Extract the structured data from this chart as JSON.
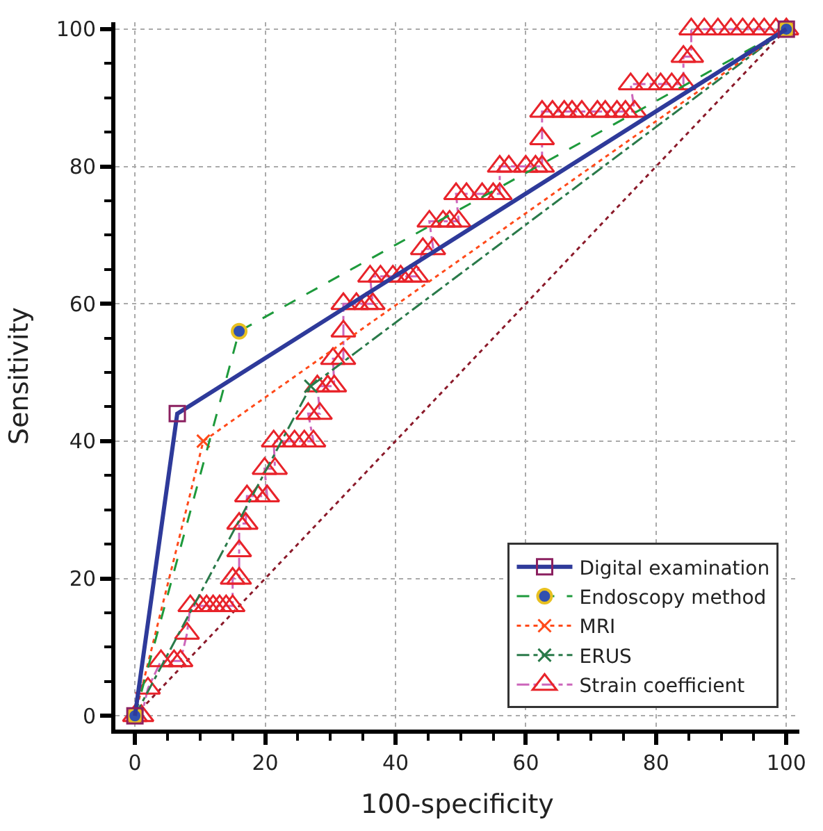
{
  "chart_data": {
    "type": "line",
    "xlabel": "100-specificity",
    "ylabel": "Sensitivity",
    "xlim": [
      -3,
      102
    ],
    "ylim": [
      -2,
      101
    ],
    "xticks": [
      0,
      20,
      40,
      60,
      80,
      100
    ],
    "yticks": [
      0,
      20,
      40,
      60,
      80,
      100
    ],
    "grid": true,
    "legend": "bottom right",
    "series": [
      {
        "name": "Digital examination",
        "color": "#2e3a9a",
        "line_style": "solid",
        "marker": "square",
        "colors": [
          "#8b2060",
          "#8b2060",
          "#8b2060"
        ],
        "x": [
          0,
          6.5,
          100
        ],
        "values": [
          0,
          44,
          100
        ]
      },
      {
        "name": "Endoscopy method",
        "color": "#1e9a3c",
        "line_style": "dashed",
        "marker": "circle",
        "colors": [
          "#3050b0",
          "#3050b0",
          "#3050b0"
        ],
        "x": [
          0,
          16,
          100
        ],
        "values": [
          0,
          56,
          100
        ]
      },
      {
        "name": "MRI",
        "color": "#ff4a1a",
        "line_style": "dotted",
        "marker": "cross",
        "x": [
          0,
          10.5,
          100
        ],
        "values": [
          0,
          40,
          100
        ]
      },
      {
        "name": "ERUS",
        "color": "#2a7a4a",
        "line_style": "dashdot",
        "marker": "cross",
        "x": [
          0,
          27,
          100
        ],
        "values": [
          0,
          48,
          100
        ]
      },
      {
        "name": "Strain coefficient",
        "color": "#cc66bb",
        "line_style": "dashdot",
        "marker": "triangle",
        "colors": [
          "#e8232a",
          "#e8232a",
          "#e8232a",
          "#e8232a",
          "#e8232a",
          "#e8232a",
          "#e8232a",
          "#e8232a",
          "#e8232a",
          "#e8232a",
          "#e8232a",
          "#e8232a",
          "#e8232a",
          "#e8232a",
          "#e8232a",
          "#e8232a",
          "#e8232a",
          "#e8232a",
          "#e8232a",
          "#e8232a",
          "#e8232a",
          "#e8232a",
          "#e8232a",
          "#e8232a",
          "#e8232a",
          "#e8232a",
          "#e8232a",
          "#e8232a",
          "#e8232a",
          "#e8232a",
          "#e8232a",
          "#e8232a",
          "#e8232a",
          "#e8232a",
          "#e8232a",
          "#e8232a",
          "#e8232a",
          "#e8232a",
          "#e8232a",
          "#e8232a",
          "#e8232a",
          "#e8232a",
          "#e8232a",
          "#e8232a",
          "#e8232a",
          "#e8232a",
          "#e8232a",
          "#e8232a",
          "#e8232a",
          "#e8232a",
          "#e8232a",
          "#e8232a",
          "#e8232a",
          "#e8232a",
          "#e8232a",
          "#e8232a",
          "#e8232a",
          "#e8232a",
          "#e8232a",
          "#e8232a",
          "#e8232a",
          "#e8232a",
          "#e8232a",
          "#e8232a",
          "#e8232a",
          "#e8232a",
          "#e8232a",
          "#e8232a",
          "#e8232a",
          "#e8232a",
          "#e8232a",
          "#e8232a",
          "#e8232a",
          "#e8232a",
          "#e8232a",
          "#e8232a",
          "#e8232a",
          "#e8232a",
          "#e8232a",
          "#e8232a",
          "#e8232a",
          "#e8232a",
          "#e8232a",
          "#e8232a",
          "#e8232a",
          "#e8232a",
          "#e8232a",
          "#e8232a",
          "#e8232a",
          "#e8232a"
        ],
        "x": [
          0,
          1,
          2,
          4,
          6,
          7,
          8,
          8.5,
          10,
          11,
          12,
          13,
          14,
          15,
          15,
          16,
          16,
          16,
          17,
          17.2,
          18.9,
          20.3,
          19.9,
          21.5,
          21.3,
          22.9,
          24.5,
          26,
          27.4,
          26.6,
          28.4,
          28,
          29.6,
          30.6,
          30.4,
          32,
          32,
          32,
          34,
          35.5,
          36.5,
          36.1,
          37.7,
          39.6,
          40.8,
          42.2,
          43.2,
          44.2,
          45.8,
          45.2,
          47.3,
          48.3,
          49.7,
          49.3,
          50.9,
          53.3,
          55,
          56,
          56,
          57.4,
          60,
          61.5,
          62.5,
          62.5,
          62.5,
          64.1,
          65.9,
          67.1,
          68.6,
          71,
          72.2,
          74,
          75.3,
          76.7,
          76.1,
          78.7,
          80.7,
          82.4,
          84.2,
          84.2,
          85.4,
          85.4,
          87.4,
          89.5,
          91.5,
          93.3,
          95,
          96.6,
          98.4,
          100
        ],
        "values": [
          0,
          0,
          4,
          8,
          8,
          8,
          12,
          16,
          16,
          16,
          16,
          16,
          16,
          16,
          20,
          20,
          24,
          28,
          28,
          32,
          32,
          32,
          36,
          36,
          40,
          40,
          40,
          40,
          40,
          44,
          44,
          48,
          48,
          48,
          52,
          52,
          56,
          60,
          60,
          60,
          60,
          64,
          64,
          64,
          64,
          64,
          64,
          68,
          68,
          72,
          72,
          72,
          72,
          76,
          76,
          76,
          76,
          76,
          80,
          80,
          80,
          80,
          80,
          84,
          88,
          88,
          88,
          88,
          88,
          88,
          88,
          88,
          88,
          88,
          92,
          92,
          92,
          92,
          92,
          96,
          96,
          100,
          100,
          100,
          100,
          100,
          100,
          100,
          100,
          100
        ]
      },
      {
        "color": "#8b1a2a",
        "line_style": "dotted",
        "marker": "none",
        "x": [
          0,
          100
        ],
        "values": [
          0,
          100
        ]
      }
    ]
  }
}
